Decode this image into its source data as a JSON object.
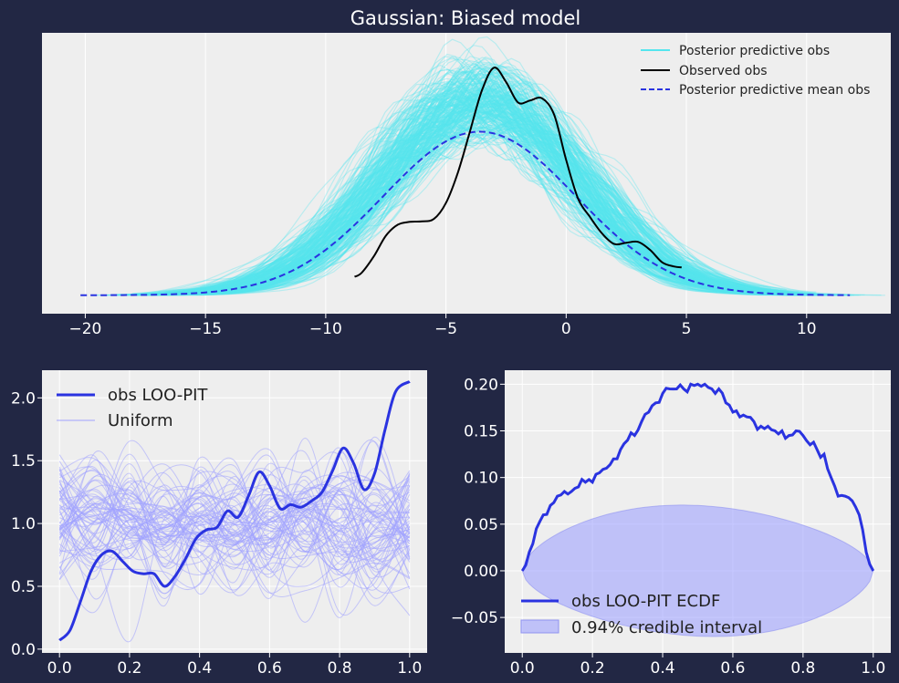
{
  "figure": {
    "background": "#222744",
    "panel_background": "#eeeeee",
    "grid_color": "#ffffff",
    "tick_color": "#ffffff"
  },
  "chart_data": [
    {
      "type": "line",
      "title": "Gaussian: Biased model",
      "xlim": [
        -21.8,
        13.5
      ],
      "ylim": [
        -0.0045,
        0.064
      ],
      "xticks": [
        -20,
        -15,
        -10,
        -5,
        0,
        5,
        10
      ],
      "xtick_labels": [
        "−20",
        "−15",
        "−10",
        "−5",
        "0",
        "5",
        "10"
      ],
      "show_yticks": false,
      "grid": "x-only",
      "legend": {
        "position": "top-right",
        "entries": [
          {
            "label": "Posterior predictive obs",
            "color": "#55e5ee",
            "style": "solid"
          },
          {
            "label": "Observed obs",
            "color": "#000000",
            "style": "solid"
          },
          {
            "label": "Posterior predictive mean obs",
            "color": "#2a33e0",
            "style": "dashed"
          }
        ]
      },
      "series": [
        {
          "name": "Posterior predictive obs",
          "style": "band",
          "color": "#55e5ee",
          "mean_center": -3.6,
          "sd": 4.0,
          "count": 500
        },
        {
          "name": "Observed obs",
          "style": "solid",
          "color": "#000000",
          "x": [
            -8.8,
            -8.5,
            -8.0,
            -7.5,
            -7.0,
            -6.5,
            -6.0,
            -5.5,
            -5.0,
            -4.5,
            -4.0,
            -3.5,
            -3.0,
            -2.5,
            -2.0,
            -1.5,
            -1.0,
            -0.5,
            0.0,
            0.5,
            1.0,
            1.5,
            2.0,
            2.5,
            3.0,
            3.5,
            4.0,
            4.5,
            4.8
          ],
          "y": [
            0.0045,
            0.0055,
            0.0095,
            0.0145,
            0.0172,
            0.0179,
            0.018,
            0.0186,
            0.0225,
            0.03,
            0.04,
            0.05,
            0.0555,
            0.052,
            0.047,
            0.0475,
            0.048,
            0.044,
            0.033,
            0.0235,
            0.019,
            0.015,
            0.0125,
            0.0128,
            0.013,
            0.011,
            0.008,
            0.007,
            0.0068
          ]
        },
        {
          "name": "Posterior predictive mean obs",
          "style": "dashed",
          "color": "#2a33e0",
          "x_range": [
            -20.2,
            11.8
          ],
          "mean_center": -3.6,
          "sd": 4.0
        }
      ]
    },
    {
      "type": "line",
      "xlim": [
        -0.05,
        1.05
      ],
      "ylim": [
        -0.03,
        2.22
      ],
      "xticks": [
        0.0,
        0.2,
        0.4,
        0.6,
        0.8,
        1.0
      ],
      "xtick_labels": [
        "0.0",
        "0.2",
        "0.4",
        "0.6",
        "0.8",
        "1.0"
      ],
      "yticks": [
        0.0,
        0.5,
        1.0,
        1.5,
        2.0
      ],
      "ytick_labels": [
        "0.0",
        "0.5",
        "1.0",
        "1.5",
        "2.0"
      ],
      "grid": "both",
      "legend": {
        "position": "top-left",
        "entries": [
          {
            "label": "obs LOO-PIT",
            "color": "#2a33e0",
            "style": "solid-thick"
          },
          {
            "label": "Uniform",
            "color": "#a0a3ff",
            "style": "solid-thin"
          }
        ]
      },
      "series": [
        {
          "name": "obs LOO-PIT",
          "color": "#2a33e0",
          "x": [
            0.0,
            0.03,
            0.06,
            0.09,
            0.12,
            0.15,
            0.18,
            0.21,
            0.24,
            0.27,
            0.3,
            0.33,
            0.36,
            0.39,
            0.42,
            0.45,
            0.48,
            0.51,
            0.54,
            0.57,
            0.6,
            0.63,
            0.66,
            0.69,
            0.72,
            0.75,
            0.78,
            0.81,
            0.84,
            0.87,
            0.9,
            0.93,
            0.96,
            1.0
          ],
          "y": [
            0.07,
            0.15,
            0.38,
            0.62,
            0.75,
            0.78,
            0.7,
            0.62,
            0.6,
            0.6,
            0.5,
            0.58,
            0.72,
            0.88,
            0.95,
            0.97,
            1.1,
            1.05,
            1.22,
            1.41,
            1.3,
            1.12,
            1.15,
            1.13,
            1.18,
            1.25,
            1.42,
            1.6,
            1.48,
            1.27,
            1.4,
            1.75,
            2.05,
            2.13
          ]
        },
        {
          "name": "Uniform",
          "color": "#a0a3ff",
          "count": 100,
          "center": 1.0,
          "spread": 0.25
        }
      ]
    },
    {
      "type": "line",
      "xlim": [
        -0.05,
        1.05
      ],
      "ylim": [
        -0.088,
        0.215
      ],
      "xticks": [
        0.0,
        0.2,
        0.4,
        0.6,
        0.8,
        1.0
      ],
      "xtick_labels": [
        "0.0",
        "0.2",
        "0.4",
        "0.6",
        "0.8",
        "1.0"
      ],
      "yticks": [
        -0.05,
        0.0,
        0.05,
        0.1,
        0.15,
        0.2
      ],
      "ytick_labels": [
        "−0.05",
        "0.00",
        "0.05",
        "0.10",
        "0.15",
        "0.20"
      ],
      "grid": "both",
      "legend": {
        "position": "bottom-left",
        "entries": [
          {
            "label": "obs LOO-PIT ECDF",
            "color": "#2a33e0",
            "style": "solid-thick"
          },
          {
            "label": "0.94% credible interval",
            "color": "#a0a3ff",
            "style": "patch"
          }
        ]
      },
      "series": [
        {
          "name": "obs LOO-PIT ECDF",
          "color": "#2a33e0",
          "x": [
            0.0,
            0.02,
            0.04,
            0.06,
            0.08,
            0.1,
            0.12,
            0.14,
            0.16,
            0.18,
            0.2,
            0.22,
            0.24,
            0.26,
            0.28,
            0.3,
            0.32,
            0.34,
            0.36,
            0.38,
            0.4,
            0.42,
            0.44,
            0.46,
            0.48,
            0.5,
            0.52,
            0.54,
            0.56,
            0.58,
            0.6,
            0.62,
            0.64,
            0.66,
            0.68,
            0.7,
            0.72,
            0.74,
            0.76,
            0.78,
            0.8,
            0.82,
            0.84,
            0.86,
            0.88,
            0.9,
            0.92,
            0.94,
            0.96,
            0.98,
            1.0
          ],
          "y": [
            0.0,
            0.02,
            0.045,
            0.06,
            0.07,
            0.08,
            0.085,
            0.085,
            0.09,
            0.095,
            0.095,
            0.105,
            0.11,
            0.12,
            0.13,
            0.14,
            0.145,
            0.16,
            0.17,
            0.18,
            0.19,
            0.195,
            0.195,
            0.195,
            0.2,
            0.2,
            0.2,
            0.195,
            0.195,
            0.18,
            0.17,
            0.165,
            0.165,
            0.16,
            0.155,
            0.155,
            0.15,
            0.15,
            0.145,
            0.15,
            0.145,
            0.135,
            0.13,
            0.125,
            0.1,
            0.08,
            0.08,
            0.075,
            0.06,
            0.02,
            0.0
          ]
        },
        {
          "name": "0.94% credible interval",
          "style": "ellipse-band",
          "color": "#a0a3ff",
          "upper_peak": 0.07,
          "lower_trough": -0.07
        }
      ]
    }
  ]
}
